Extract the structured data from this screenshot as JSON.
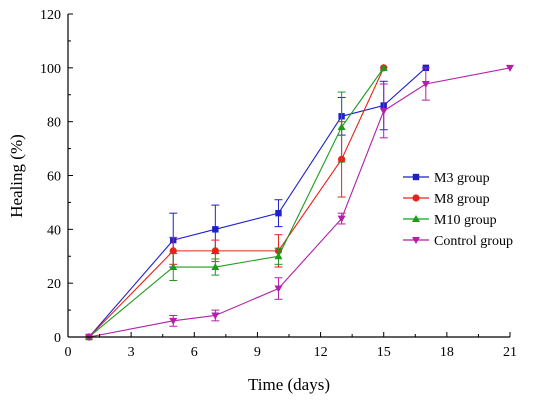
{
  "chart_data": {
    "type": "line",
    "xlabel": "Time (days)",
    "ylabel": "Healing (%)",
    "xlim": [
      0,
      21
    ],
    "ylim": [
      0,
      120
    ],
    "xticks": [
      0,
      3,
      6,
      9,
      12,
      15,
      18,
      21
    ],
    "yticks": [
      0,
      20,
      40,
      60,
      80,
      100,
      120
    ],
    "grid": false,
    "legend_position": "right",
    "series": [
      {
        "name": "M3 group",
        "color": "#1f1fcc",
        "marker": "square",
        "x": [
          1,
          5,
          7,
          10,
          13,
          15,
          17
        ],
        "y": [
          0,
          36,
          40,
          46,
          82,
          86,
          100
        ],
        "err": [
          0,
          10,
          9,
          5,
          7,
          9,
          0
        ]
      },
      {
        "name": "M8 group",
        "color": "#e8221b",
        "marker": "circle",
        "x": [
          1,
          5,
          7,
          10,
          13,
          15
        ],
        "y": [
          0,
          32,
          32,
          32,
          66,
          100
        ],
        "err": [
          0,
          5,
          4,
          6,
          14,
          0
        ]
      },
      {
        "name": "M10 group",
        "color": "#1e9a1e",
        "marker": "triangle-up",
        "x": [
          1,
          5,
          7,
          10,
          13,
          15
        ],
        "y": [
          0,
          26,
          26,
          30,
          78,
          100
        ],
        "err": [
          0,
          5,
          3,
          3,
          13,
          0
        ]
      },
      {
        "name": "Control group",
        "color": "#b31fa8",
        "marker": "triangle-down",
        "x": [
          1,
          5,
          7,
          10,
          13,
          15,
          17,
          21
        ],
        "y": [
          0,
          6,
          8,
          18,
          44,
          84,
          94,
          100
        ],
        "err": [
          0,
          2,
          2,
          4,
          2,
          10,
          6,
          0
        ]
      }
    ]
  }
}
